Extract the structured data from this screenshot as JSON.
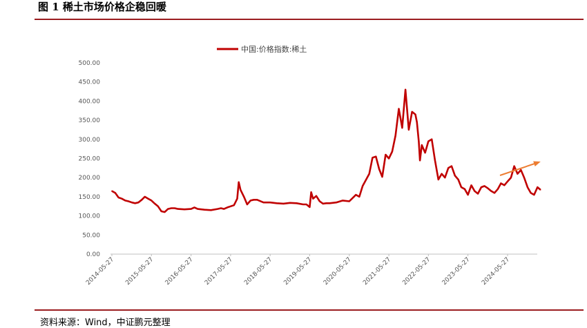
{
  "figure": {
    "title": "图 1 稀土市场价格企稳回暖",
    "source": "资料来源：Wind，中证鹏元整理"
  },
  "colors": {
    "series": "#c00000",
    "rule": "#9b1c1f",
    "arrow": "#ed7d31"
  },
  "chart_data": {
    "type": "line",
    "title": "",
    "xlabel": "",
    "ylabel": "",
    "ylim": [
      0,
      500
    ],
    "y_ticks": [
      "0.00",
      "50.00",
      "100.00",
      "150.00",
      "200.00",
      "250.00",
      "300.00",
      "350.00",
      "400.00",
      "450.00",
      "500.00"
    ],
    "x_ticks": [
      "2014-05-27",
      "2015-05-27",
      "2016-05-27",
      "2017-05-27",
      "2018-05-27",
      "2019-05-27",
      "2020-05-27",
      "2021-05-27",
      "2022-05-27",
      "2023-05-27",
      "2024-05-27"
    ],
    "grid": false,
    "legend": "top-center",
    "annotation": "upward trend arrow (orange), 2024-2025",
    "series": [
      {
        "name": "中国:价格指数:稀土",
        "x": [
          "2014-05-27",
          "2014-06-27",
          "2014-07-27",
          "2014-08-27",
          "2014-09-27",
          "2014-10-27",
          "2014-11-27",
          "2014-12-27",
          "2015-01-27",
          "2015-02-27",
          "2015-03-27",
          "2015-04-27",
          "2015-05-27",
          "2015-06-27",
          "2015-07-27",
          "2015-08-27",
          "2015-09-27",
          "2015-10-27",
          "2015-11-27",
          "2015-12-27",
          "2016-01-27",
          "2016-03-27",
          "2016-05-27",
          "2016-06-27",
          "2016-07-27",
          "2016-09-27",
          "2016-11-27",
          "2017-01-27",
          "2017-02-27",
          "2017-03-27",
          "2017-04-27",
          "2017-05-27",
          "2017-06-27",
          "2017-07-10",
          "2017-07-27",
          "2017-08-10",
          "2017-08-27",
          "2017-09-27",
          "2017-10-27",
          "2017-11-27",
          "2017-12-27",
          "2018-01-27",
          "2018-03-27",
          "2018-05-27",
          "2018-07-27",
          "2018-09-27",
          "2018-11-27",
          "2019-01-27",
          "2019-03-27",
          "2019-04-27",
          "2019-05-27",
          "2019-06-10",
          "2019-06-27",
          "2019-07-27",
          "2019-08-27",
          "2019-09-27",
          "2019-10-27",
          "2019-11-27",
          "2020-01-27",
          "2020-03-27",
          "2020-05-27",
          "2020-07-27",
          "2020-08-27",
          "2020-09-27",
          "2020-11-27",
          "2020-12-27",
          "2021-01-27",
          "2021-02-27",
          "2021-03-27",
          "2021-04-27",
          "2021-05-27",
          "2021-06-27",
          "2021-07-27",
          "2021-08-27",
          "2021-09-27",
          "2021-10-27",
          "2021-11-27",
          "2021-12-27",
          "2022-01-27",
          "2022-02-10",
          "2022-02-27",
          "2022-03-10",
          "2022-03-27",
          "2022-04-27",
          "2022-05-27",
          "2022-06-27",
          "2022-07-27",
          "2022-08-27",
          "2022-09-27",
          "2022-10-27",
          "2022-11-27",
          "2022-12-27",
          "2023-01-27",
          "2023-02-27",
          "2023-03-27",
          "2023-04-27",
          "2023-05-27",
          "2023-06-27",
          "2023-07-27",
          "2023-08-27",
          "2023-09-27",
          "2023-10-27",
          "2023-11-27",
          "2023-12-27",
          "2024-01-27",
          "2024-02-27",
          "2024-03-27",
          "2024-04-27",
          "2024-05-27",
          "2024-06-27",
          "2024-07-27",
          "2024-08-27",
          "2024-09-27",
          "2024-10-27",
          "2024-11-27",
          "2024-12-27",
          "2025-01-27",
          "2025-02-27",
          "2025-03-27"
        ],
        "values": [
          165,
          160,
          148,
          145,
          140,
          138,
          135,
          133,
          135,
          142,
          150,
          145,
          140,
          132,
          125,
          112,
          110,
          118,
          120,
          120,
          118,
          117,
          118,
          122,
          118,
          116,
          115,
          118,
          120,
          118,
          122,
          125,
          128,
          135,
          145,
          188,
          168,
          150,
          130,
          140,
          142,
          142,
          135,
          135,
          133,
          132,
          134,
          133,
          130,
          130,
          123,
          162,
          145,
          152,
          138,
          132,
          133,
          133,
          135,
          140,
          138,
          155,
          150,
          178,
          210,
          252,
          255,
          222,
          202,
          260,
          250,
          268,
          310,
          380,
          330,
          430,
          325,
          372,
          365,
          345,
          295,
          245,
          285,
          265,
          295,
          300,
          245,
          195,
          210,
          200,
          225,
          230,
          205,
          195,
          175,
          170,
          155,
          180,
          165,
          158,
          175,
          178,
          172,
          165,
          160,
          170,
          185,
          180,
          190,
          200,
          230,
          210,
          220,
          200,
          175,
          160,
          155,
          175,
          168
        ]
      }
    ]
  }
}
